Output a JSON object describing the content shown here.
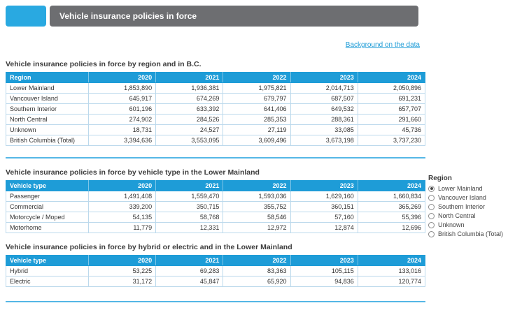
{
  "header": {
    "title": "Vehicle insurance policies in force"
  },
  "link": {
    "label": "Background on the data"
  },
  "tables": [
    {
      "title": "Vehicle insurance policies in force by region and in B.C.",
      "first_column_header": "Region",
      "years": [
        "2020",
        "2021",
        "2022",
        "2023",
        "2024"
      ],
      "rows": [
        {
          "label": "Lower Mainland",
          "values": [
            "1,853,890",
            "1,936,381",
            "1,975,821",
            "2,014,713",
            "2,050,896"
          ]
        },
        {
          "label": "Vancouver Island",
          "values": [
            "645,917",
            "674,269",
            "679,797",
            "687,507",
            "691,231"
          ]
        },
        {
          "label": "Southern Interior",
          "values": [
            "601,196",
            "633,392",
            "641,406",
            "649,532",
            "657,707"
          ]
        },
        {
          "label": "North Central",
          "values": [
            "274,902",
            "284,526",
            "285,353",
            "288,361",
            "291,660"
          ]
        },
        {
          "label": "Unknown",
          "values": [
            "18,731",
            "24,527",
            "27,119",
            "33,085",
            "45,736"
          ]
        },
        {
          "label": "British Columbia (Total)",
          "values": [
            "3,394,636",
            "3,553,095",
            "3,609,496",
            "3,673,198",
            "3,737,230"
          ]
        }
      ]
    },
    {
      "title": "Vehicle insurance policies in force by vehicle type in the Lower Mainland",
      "first_column_header": "Vehicle type",
      "years": [
        "2020",
        "2021",
        "2022",
        "2023",
        "2024"
      ],
      "rows": [
        {
          "label": "Passenger",
          "values": [
            "1,491,408",
            "1,559,470",
            "1,593,036",
            "1,629,160",
            "1,660,834"
          ]
        },
        {
          "label": "Commercial",
          "values": [
            "339,200",
            "350,715",
            "355,752",
            "360,151",
            "365,269"
          ]
        },
        {
          "label": "Motorcycle / Moped",
          "values": [
            "54,135",
            "58,768",
            "58,546",
            "57,160",
            "55,396"
          ]
        },
        {
          "label": "Motorhome",
          "values": [
            "11,779",
            "12,331",
            "12,972",
            "12,874",
            "12,696"
          ]
        }
      ]
    },
    {
      "title": "Vehicle insurance policies in force by hybrid or electric and in the Lower Mainland",
      "first_column_header": "Vehicle type",
      "years": [
        "2020",
        "2021",
        "2022",
        "2023",
        "2024"
      ],
      "rows": [
        {
          "label": "Hybrid",
          "values": [
            "53,225",
            "69,283",
            "83,363",
            "105,115",
            "133,016"
          ]
        },
        {
          "label": "Electric",
          "values": [
            "31,172",
            "45,847",
            "65,920",
            "94,836",
            "120,774"
          ]
        }
      ]
    }
  ],
  "region_filter": {
    "label": "Region",
    "options": [
      {
        "label": "Lower Mainland",
        "selected": true
      },
      {
        "label": "Vancouver Island",
        "selected": false
      },
      {
        "label": "Southern Interior",
        "selected": false
      },
      {
        "label": "North Central",
        "selected": false
      },
      {
        "label": "Unknown",
        "selected": false
      },
      {
        "label": "British Columbia (Total)",
        "selected": false
      }
    ]
  },
  "colors": {
    "brand_blue": "#29a9e1",
    "table_header_blue": "#1e9cd7",
    "bar_gray": "#6d6e71",
    "link_blue": "#1e9cd7"
  }
}
